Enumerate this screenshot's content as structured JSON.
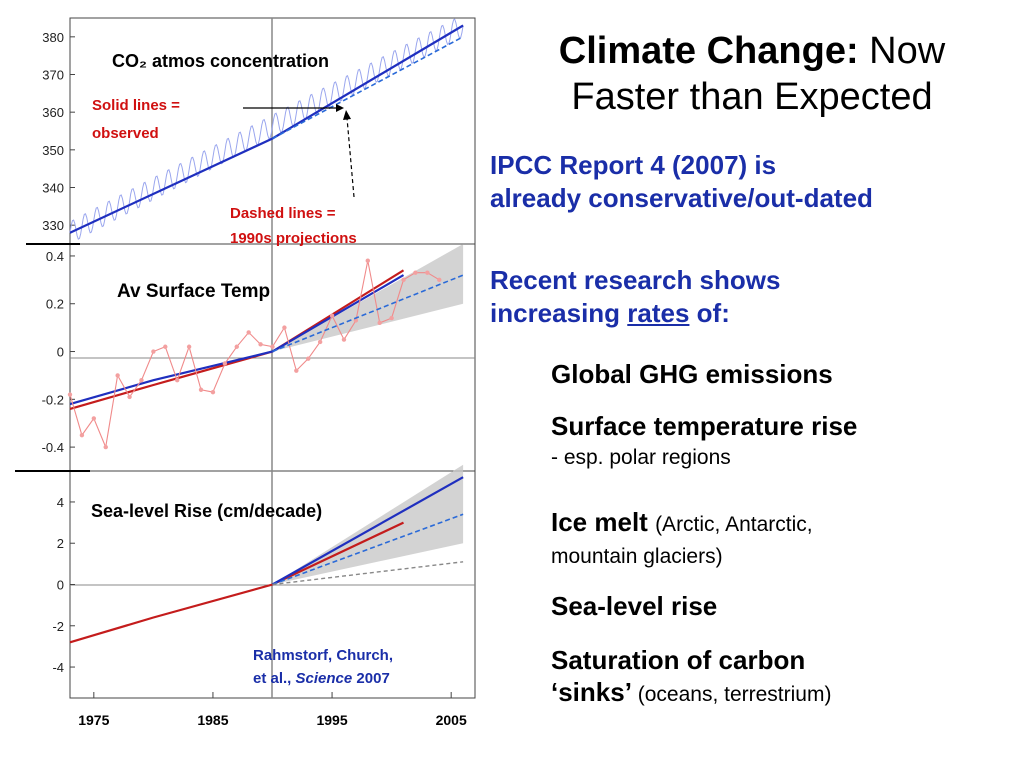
{
  "slide": {
    "title_bold": "Climate Change:",
    "title_rest_line1": "Now",
    "title_line2": "Faster than Expected",
    "ipcc_line1": "IPCC Report 4 (2007) is",
    "ipcc_line2": "already conservative/out-dated",
    "recent_line1": "Recent research shows",
    "recent_line2_a": "increasing ",
    "recent_line2_u": "rates",
    "recent_line2_b": " of:",
    "items": [
      {
        "main": "Global GHG emissions",
        "sub": ""
      },
      {
        "main": "Surface temperature rise",
        "sub": "- esp. polar regions"
      },
      {
        "main": "Ice melt",
        "sub": "(Arctic, Antarctic,",
        "sub2": "mountain glaciers)"
      },
      {
        "main": "Sea-level rise",
        "sub": ""
      },
      {
        "main": "Saturation of carbon",
        "main2": "‘sinks’",
        "sub": "(oceans, terrestrium)"
      }
    ]
  },
  "chart_data": [
    {
      "type": "line",
      "title": "CO₂ atmos concentration",
      "ylim": [
        325,
        385
      ],
      "xlim": [
        1973,
        2007
      ],
      "yticks": [
        "330",
        "340",
        "350",
        "360",
        "370",
        "380"
      ],
      "annotations": [
        "Solid lines =",
        "observed",
        "Dashed lines =",
        "1990s projections"
      ],
      "series": [
        {
          "style": "observed-trend",
          "x": [
            1973,
            1990,
            2006
          ],
          "y": [
            328,
            353,
            383
          ]
        },
        {
          "style": "projection",
          "x": [
            1990,
            2006
          ],
          "y": [
            353,
            380
          ]
        }
      ]
    },
    {
      "type": "line",
      "title": "Av Surface Temp",
      "ylim": [
        -0.5,
        0.45
      ],
      "yticks": [
        "0.4",
        "0.2",
        "0",
        "-0.2",
        "-0.4"
      ],
      "series": [
        {
          "style": "observed-trend-red",
          "x": [
            1973,
            1980,
            1990,
            2001
          ],
          "y": [
            -0.24,
            -0.14,
            0.0,
            0.34
          ]
        },
        {
          "style": "observed-trend-blue",
          "x": [
            1973,
            1980,
            1990,
            2001
          ],
          "y": [
            -0.22,
            -0.12,
            0.0,
            0.32
          ]
        },
        {
          "style": "observed-annual",
          "x": [
            1973,
            1974,
            1975,
            1976,
            1977,
            1978,
            1979,
            1980,
            1981,
            1982,
            1983,
            1984,
            1985,
            1986,
            1987,
            1988,
            1989,
            1990,
            1991,
            1992,
            1993,
            1994,
            1995,
            1996,
            1997,
            1998,
            1999,
            2000,
            2001,
            2002,
            2003,
            2004
          ],
          "y": [
            -0.18,
            -0.35,
            -0.28,
            -0.4,
            -0.1,
            -0.19,
            -0.12,
            0.0,
            0.02,
            -0.12,
            0.02,
            -0.16,
            -0.17,
            -0.05,
            0.02,
            0.08,
            0.03,
            0.02,
            0.1,
            -0.08,
            -0.03,
            0.04,
            0.15,
            0.05,
            0.13,
            0.38,
            0.12,
            0.14,
            0.3,
            0.33,
            0.33,
            0.3
          ]
        },
        {
          "style": "projection",
          "x": [
            1990,
            2006
          ],
          "y": [
            0.0,
            0.32
          ]
        }
      ]
    },
    {
      "type": "line",
      "title": "Sea-level Rise (cm/decade)",
      "ylim": [
        -5.5,
        5.5
      ],
      "yticks": [
        "4",
        "2",
        "0",
        "-2",
        "-4"
      ],
      "annotations": [
        "Rahmstorf, Church,",
        "et al., ",
        "Science",
        " 2007"
      ],
      "x_ticks": [
        "1975",
        "1985",
        "1995",
        "2005"
      ],
      "series": [
        {
          "style": "observed-trend-red",
          "x": [
            1973,
            1980,
            1990,
            2001
          ],
          "y": [
            -2.8,
            -1.6,
            0.0,
            3.0
          ]
        },
        {
          "style": "observed-trend-blue",
          "x": [
            1990,
            2006
          ],
          "y": [
            0.0,
            5.2
          ]
        },
        {
          "style": "projection",
          "x": [
            1990,
            2006
          ],
          "y": [
            0.0,
            3.4
          ]
        },
        {
          "style": "projection-gray",
          "x": [
            1990,
            2006
          ],
          "y": [
            0.0,
            1.1
          ]
        }
      ]
    }
  ],
  "colors": {
    "blue": "#2233bb",
    "red": "#cc1f1f",
    "heading_blue": "#1a2ea8"
  }
}
